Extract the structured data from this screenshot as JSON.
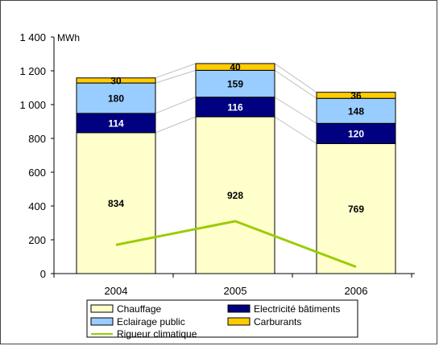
{
  "chart_data": {
    "type": "bar",
    "stacked": true,
    "categories": [
      "2004",
      "2005",
      "2006"
    ],
    "unit": "MWh",
    "ylim": [
      0,
      1400
    ],
    "yticks": [
      "0",
      "200",
      "400",
      "600",
      "800",
      "1 000",
      "1 200",
      "1 400"
    ],
    "grid": false,
    "legend_position": "bottom",
    "series": [
      {
        "name": "Chauffage",
        "values": [
          834,
          928,
          769
        ],
        "color": "#FFFFCC",
        "label_color": "#000000"
      },
      {
        "name": "Electricité bâtiments",
        "values": [
          114,
          116,
          120
        ],
        "color": "#000080",
        "label_color": "#FFFFFF"
      },
      {
        "name": "Eclairage public",
        "values": [
          180,
          159,
          148
        ],
        "color": "#99CCFF",
        "label_color": "#000000"
      },
      {
        "name": "Carburants",
        "values": [
          30,
          40,
          36
        ],
        "color": "#FFCC00",
        "label_color": "#000000"
      }
    ],
    "line_series": {
      "name": "Rigueur climatique",
      "values": [
        170,
        310,
        40
      ],
      "color": "#99CC00"
    },
    "legend": [
      {
        "name": "Chauffage",
        "color": "#FFFFCC",
        "kind": "box"
      },
      {
        "name": "Electricité bâtiments",
        "color": "#000080",
        "kind": "box"
      },
      {
        "name": "Eclairage public",
        "color": "#99CCFF",
        "kind": "box"
      },
      {
        "name": "Carburants",
        "color": "#FFCC00",
        "kind": "box"
      },
      {
        "name": "Rigueur climatique",
        "color": "#99CC00",
        "kind": "line"
      }
    ]
  }
}
